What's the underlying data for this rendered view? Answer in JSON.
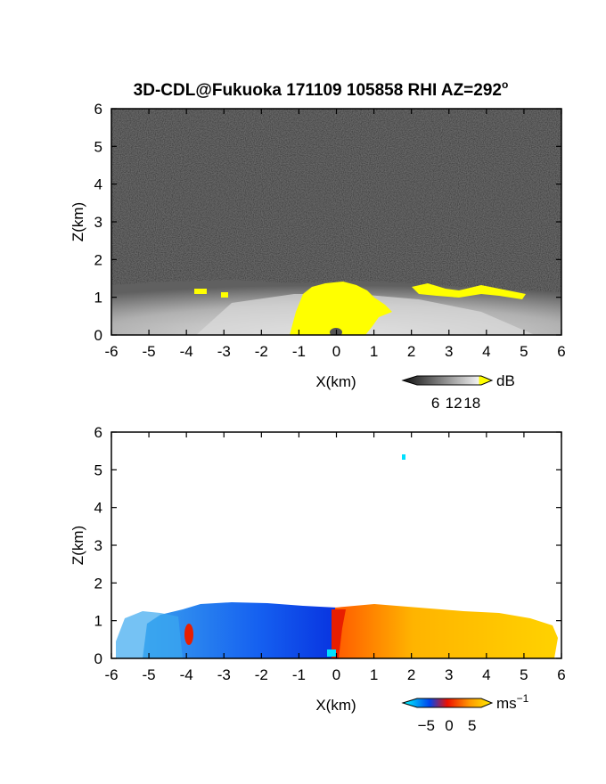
{
  "title": "3D-CDL@Fukuoka 171109 105858 RHI AZ=292",
  "title_superscript": "o",
  "chart_data": [
    {
      "type": "heatmap",
      "panel": "reflectivity",
      "xlabel": "X(km)",
      "ylabel": "Z(km)",
      "xlim": [
        -6,
        6
      ],
      "ylim": [
        0,
        6
      ],
      "xticks": [
        "-6",
        "-5",
        "-4",
        "-3",
        "-2",
        "-1",
        "0",
        "1",
        "2",
        "3",
        "4",
        "5",
        "6"
      ],
      "yticks": [
        "0",
        "1",
        "2",
        "3",
        "4",
        "5",
        "6"
      ],
      "colormap": "grayscale, yellow above 18 dB",
      "colorbar": {
        "unit": "dB",
        "ticks": [
          "6",
          "12",
          "18"
        ],
        "tick_values": [
          6,
          12,
          18
        ],
        "range": [
          0,
          21
        ],
        "colors": {
          "low": "#101010",
          "high": "#f0f0f0",
          "over": "#ffff00"
        }
      },
      "features": {
        "noise_above_km": 1.3,
        "echo_layer_top_km": [
          1.0,
          1.4
        ],
        "yellow_core_x_km": [
          -1,
          1
        ],
        "yellow_core_top_km": 1.3
      }
    },
    {
      "type": "heatmap",
      "panel": "doppler_velocity",
      "xlabel": "X(km)",
      "ylabel": "Z(km)",
      "xlim": [
        -6,
        6
      ],
      "ylim": [
        0,
        6
      ],
      "xticks": [
        "-6",
        "-5",
        "-4",
        "-3",
        "-2",
        "-1",
        "0",
        "1",
        "2",
        "3",
        "4",
        "5",
        "6"
      ],
      "yticks": [
        "0",
        "1",
        "2",
        "3",
        "4",
        "5",
        "6"
      ],
      "colormap": "cyan-blue-red-yellow",
      "colorbar": {
        "unit": "ms",
        "unit_superscript": "−1",
        "ticks": [
          "−5",
          "0",
          "5"
        ],
        "tick_values": [
          -5,
          0,
          5
        ],
        "range": [
          -7,
          7
        ],
        "colors": {
          "min": "#00ffff",
          "neg": "#0044ee",
          "zero": "#ee1100",
          "pos": "#ffee00"
        }
      },
      "features": {
        "negative_velocity_x_km": [
          -6,
          0
        ],
        "positive_velocity_x_km": [
          0,
          6
        ],
        "layer_top_km": 1.4,
        "isolated_echo": {
          "x": 1.8,
          "z": 5.4
        }
      }
    }
  ]
}
